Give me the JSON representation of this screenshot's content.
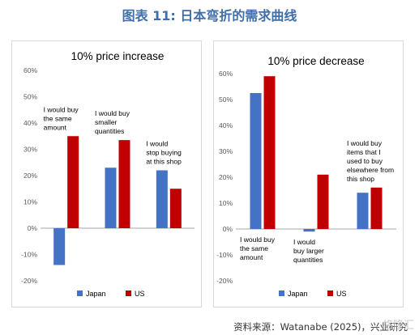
{
  "figure_title": "图表 11: 日本弯折的需求曲线",
  "source": "资料来源：Watanabe (2025)，兴业研究",
  "watermark": "格隆汇",
  "colors": {
    "japan": "#4472c4",
    "us": "#c00000",
    "title": "#3f6ea8",
    "zero_line": "#888888"
  },
  "chart_data": [
    {
      "type": "bar",
      "title": "10% price increase",
      "categories": [
        "I would buy the same amount",
        "I would buy smaller quantities",
        "I would stop buying at this shop"
      ],
      "category_lines": [
        [
          "I would buy",
          "the same",
          "amount"
        ],
        [
          "I would buy",
          "smaller",
          "quantities"
        ],
        [
          "I would",
          "stop buying",
          "at this shop"
        ]
      ],
      "series": [
        {
          "name": "Japan",
          "values": [
            -14,
            23,
            22
          ]
        },
        {
          "name": "US",
          "values": [
            35,
            33.5,
            15
          ]
        }
      ],
      "ylim": [
        -20,
        60
      ],
      "yticks": [
        "-20%",
        "-10%",
        "0%",
        "10%",
        "20%",
        "30%",
        "40%",
        "50%",
        "60%"
      ],
      "legend": [
        "Japan",
        "US"
      ],
      "legend_position": "bottom",
      "grid": false
    },
    {
      "type": "bar",
      "title": "10% price decrease",
      "categories": [
        "I would buy the same amount",
        "I would buy larger quantities",
        "I would buy items that I used to buy elsewhere from this shop"
      ],
      "category_lines": [
        [
          "I would buy",
          "the same",
          "amount"
        ],
        [
          "I would",
          "buy larger",
          "quantities"
        ],
        [
          "I would buy",
          "items that I",
          "used to buy",
          "elsewhere from",
          "this shop"
        ]
      ],
      "series": [
        {
          "name": "Japan",
          "values": [
            52.5,
            -1,
            14
          ]
        },
        {
          "name": "US",
          "values": [
            59,
            21,
            16
          ]
        }
      ],
      "ylim": [
        -20,
        60
      ],
      "yticks": [
        "-20%",
        "-10%",
        "0%",
        "10%",
        "20%",
        "30%",
        "40%",
        "50%",
        "60%"
      ],
      "legend": [
        "Japan",
        "US"
      ],
      "legend_position": "bottom",
      "grid": false
    }
  ]
}
